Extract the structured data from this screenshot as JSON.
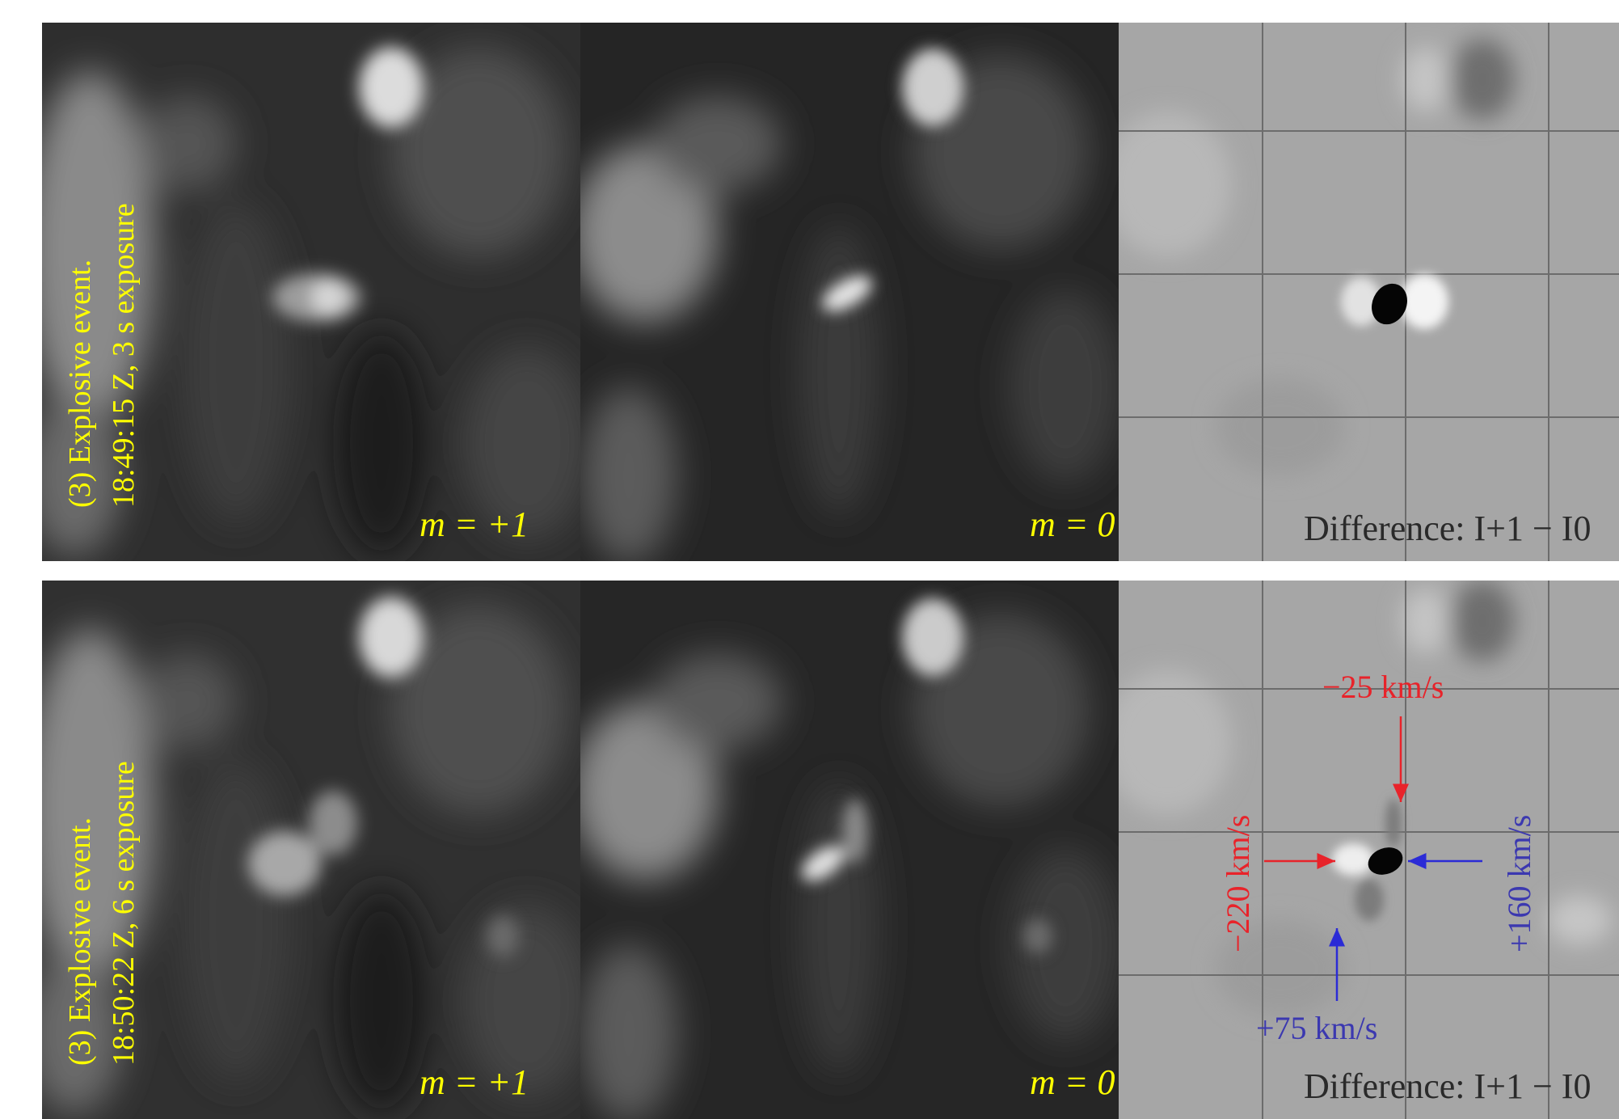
{
  "panels": [
    {
      "title_line1": "(3) Explosive event.",
      "title_line2": "18:49:15 Z, 3 s exposure",
      "left_label": "m = +1",
      "middle_label": "m = 0",
      "diff_label": "Difference: I+1 − I0"
    },
    {
      "title_line1": "(3) Explosive event.",
      "title_line2": "18:50:22 Z, 6 s exposure",
      "left_label": "m = +1",
      "middle_label": "m = 0",
      "diff_label": "Difference: I+1 − I0",
      "annotations": {
        "top": "−25 km/s",
        "left": "−220 km/s",
        "right": "+160 km/s",
        "bottom": "+75 km/s"
      }
    }
  ],
  "colors": {
    "label": "#ffff00",
    "redshift_arrow": "#e8232a",
    "blueshift_arrow": "#2b2bd6"
  }
}
